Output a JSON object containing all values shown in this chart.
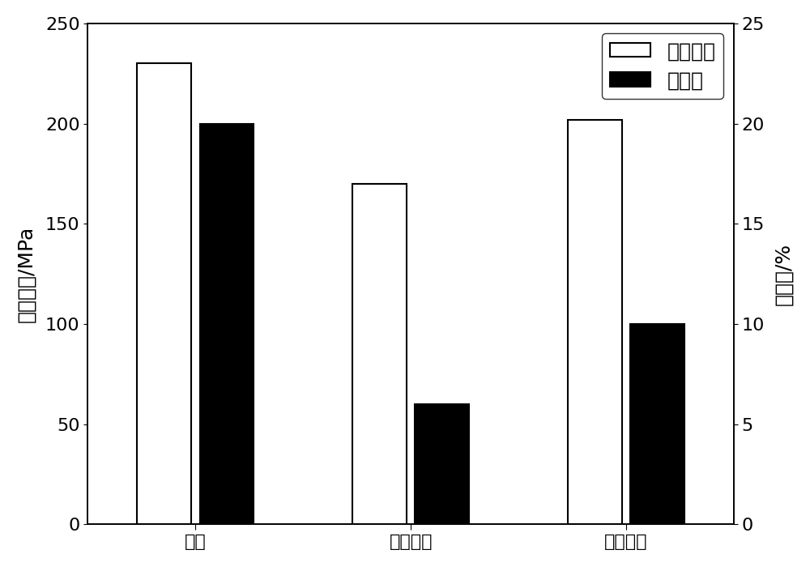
{
  "categories": [
    "母材",
    "焊态焊缝",
    "热压焊缝"
  ],
  "tensile_strength": [
    230,
    170,
    202
  ],
  "elongation": [
    20,
    6,
    10
  ],
  "bar_width": 0.25,
  "tensile_color": "#ffffff",
  "tensile_edgecolor": "#000000",
  "elongation_color": "#000000",
  "elongation_edgecolor": "#000000",
  "ylabel_left": "抗拉强度/MPa",
  "ylabel_right": "伸长率/%",
  "ylim_left": [
    0,
    250
  ],
  "ylim_right": [
    0,
    25
  ],
  "yticks_left": [
    0,
    50,
    100,
    150,
    200,
    250
  ],
  "yticks_right": [
    0,
    5,
    10,
    15,
    20,
    25
  ],
  "legend_labels": [
    "抗拉强度",
    "伸长率"
  ],
  "background_color": "#ffffff",
  "label_fontsize": 18,
  "tick_fontsize": 16,
  "legend_fontsize": 18,
  "ylabel_fontsize": 18
}
